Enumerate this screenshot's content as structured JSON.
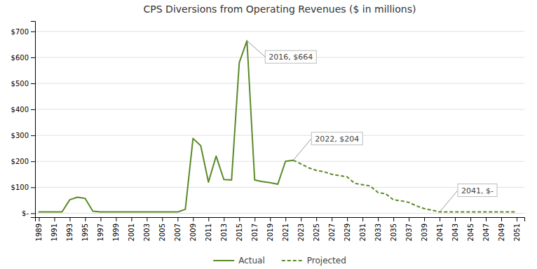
{
  "chart_data": {
    "type": "line",
    "title": "CPS Diversions from Operating Revenues ($ in millions)",
    "x": [
      1989,
      1990,
      1991,
      1992,
      1993,
      1994,
      1995,
      1996,
      1997,
      1998,
      1999,
      2000,
      2001,
      2002,
      2003,
      2004,
      2005,
      2006,
      2007,
      2008,
      2009,
      2010,
      2011,
      2012,
      2013,
      2014,
      2015,
      2016,
      2017,
      2018,
      2019,
      2020,
      2021,
      2022,
      2023,
      2024,
      2025,
      2026,
      2027,
      2028,
      2029,
      2030,
      2031,
      2032,
      2033,
      2034,
      2035,
      2036,
      2037,
      2038,
      2039,
      2040,
      2041,
      2042,
      2043,
      2044,
      2045,
      2046,
      2047,
      2048,
      2049,
      2050,
      2051
    ],
    "series": [
      {
        "name": "Actual",
        "color": "#5a8a28",
        "line_style": "solid",
        "values": [
          5,
          5,
          5,
          5,
          52,
          62,
          57,
          8,
          5,
          5,
          5,
          5,
          5,
          5,
          5,
          5,
          5,
          5,
          5,
          15,
          288,
          260,
          120,
          220,
          130,
          128,
          580,
          664,
          128,
          122,
          118,
          112,
          200,
          204,
          null,
          null,
          null,
          null,
          null,
          null,
          null,
          null,
          null,
          null,
          null,
          null,
          null,
          null,
          null,
          null,
          null,
          null,
          null,
          null,
          null,
          null,
          null,
          null,
          null,
          null,
          null,
          null,
          null
        ]
      },
      {
        "name": "Projected",
        "color": "#5a8a28",
        "line_style": "dashed",
        "values": [
          null,
          null,
          null,
          null,
          null,
          null,
          null,
          null,
          null,
          null,
          null,
          null,
          null,
          null,
          null,
          null,
          null,
          null,
          null,
          null,
          null,
          null,
          null,
          null,
          null,
          null,
          null,
          null,
          null,
          null,
          null,
          null,
          null,
          204,
          190,
          175,
          165,
          160,
          150,
          145,
          140,
          115,
          110,
          105,
          80,
          75,
          52,
          48,
          42,
          28,
          18,
          12,
          5,
          5,
          5,
          5,
          5,
          5,
          5,
          5,
          5,
          5,
          5
        ]
      }
    ],
    "xlim": [
      1988.5,
      2052
    ],
    "ylim": [
      -15,
      740
    ],
    "xticks": [
      1989,
      1991,
      1993,
      1995,
      1997,
      1999,
      2001,
      2003,
      2005,
      2007,
      2009,
      2011,
      2013,
      2015,
      2017,
      2019,
      2021,
      2023,
      2025,
      2027,
      2029,
      2031,
      2033,
      2035,
      2037,
      2039,
      2041,
      2043,
      2045,
      2047,
      2049,
      2051
    ],
    "yticks": [
      {
        "value": 0,
        "label": "$-"
      },
      {
        "value": 100,
        "label": "$100"
      },
      {
        "value": 200,
        "label": "$200"
      },
      {
        "value": 300,
        "label": "$300"
      },
      {
        "value": 400,
        "label": "$400"
      },
      {
        "value": 500,
        "label": "$500"
      },
      {
        "value": 600,
        "label": "$600"
      },
      {
        "value": 700,
        "label": "$700"
      }
    ],
    "grid": true,
    "legend": "bottom",
    "annotations": [
      {
        "text": "2016, $664",
        "x": 2016,
        "y": 664
      },
      {
        "text": "2022, $204",
        "x": 2022,
        "y": 204
      },
      {
        "text": "2041, $-",
        "x": 2041,
        "y": 5
      }
    ]
  }
}
